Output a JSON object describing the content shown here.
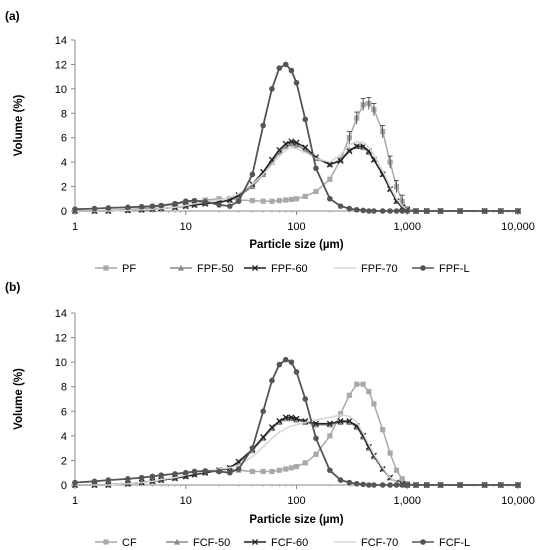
{
  "chart_data": [
    {
      "type": "line",
      "panel_label": "(a)",
      "xlabel": "Particle size (µm)",
      "ylabel": "Volume (%)",
      "x_scale": "log",
      "xlim": [
        1,
        10000
      ],
      "ylim": [
        0,
        14
      ],
      "x_tick_labels": [
        "1",
        "10",
        "100",
        "1,000",
        "10,000"
      ],
      "y_tick_labels": [
        "0",
        "2",
        "4",
        "6",
        "8",
        "10",
        "12",
        "14"
      ],
      "grid": false,
      "legend_position": "bottom",
      "x": [
        1,
        1.5,
        2,
        3,
        4,
        5,
        6,
        8,
        10,
        12,
        15,
        20,
        25,
        30,
        40,
        50,
        60,
        70,
        80,
        90,
        100,
        120,
        150,
        200,
        250,
        300,
        350,
        400,
        450,
        500,
        600,
        700,
        800,
        900,
        1000,
        1200,
        1500,
        2000,
        3000,
        5000,
        7000,
        10000
      ],
      "series": [
        {
          "name": "PF",
          "color": "#a9a9a9",
          "marker": "square",
          "values": [
            0,
            0,
            0.05,
            0.1,
            0.2,
            0.3,
            0.4,
            0.55,
            0.7,
            0.8,
            0.9,
            1.0,
            1.0,
            0.9,
            0.85,
            0.8,
            0.8,
            0.85,
            0.9,
            0.95,
            1.0,
            1.2,
            1.6,
            2.6,
            4.2,
            6.0,
            7.6,
            8.7,
            8.8,
            8.3,
            6.5,
            4.0,
            2.0,
            0.8,
            0.2,
            0,
            0,
            0,
            0,
            0,
            0,
            0
          ]
        },
        {
          "name": "FPF-50",
          "color": "#8a8a8a",
          "marker": "triangle",
          "values": [
            0,
            0,
            0,
            0.05,
            0.1,
            0.15,
            0.2,
            0.3,
            0.4,
            0.5,
            0.6,
            0.7,
            0.9,
            1.2,
            2.0,
            3.0,
            4.0,
            4.8,
            5.3,
            5.5,
            5.4,
            5.0,
            4.3,
            3.8,
            4.2,
            5.0,
            5.3,
            5.2,
            4.8,
            4.2,
            3.0,
            1.8,
            0.8,
            0.3,
            0.1,
            0,
            0,
            0,
            0,
            0,
            0,
            0
          ]
        },
        {
          "name": "FPF-60",
          "color": "#222222",
          "marker": "x",
          "values": [
            0,
            0,
            0,
            0.05,
            0.1,
            0.15,
            0.2,
            0.3,
            0.4,
            0.5,
            0.6,
            0.7,
            0.9,
            1.3,
            2.2,
            3.2,
            4.2,
            5.0,
            5.5,
            5.7,
            5.6,
            5.2,
            4.4,
            3.8,
            4.1,
            4.9,
            5.3,
            5.3,
            4.9,
            4.2,
            3.0,
            1.8,
            0.8,
            0.3,
            0.1,
            0,
            0,
            0,
            0,
            0,
            0,
            0
          ]
        },
        {
          "name": "FPF-70",
          "color": "#d5d5d5",
          "marker": "none",
          "values": [
            0,
            0,
            0,
            0.05,
            0.1,
            0.15,
            0.2,
            0.3,
            0.45,
            0.6,
            0.75,
            0.9,
            1.1,
            1.4,
            2.2,
            3.0,
            3.8,
            4.5,
            5.0,
            5.2,
            5.1,
            4.8,
            4.3,
            4.0,
            4.6,
            5.4,
            5.7,
            5.6,
            5.2,
            4.6,
            3.3,
            2.0,
            1.0,
            0.4,
            0.1,
            0,
            0,
            0,
            0,
            0,
            0,
            0
          ]
        },
        {
          "name": "FPF-L",
          "color": "#555555",
          "marker": "circle",
          "values": [
            0.15,
            0.2,
            0.25,
            0.3,
            0.35,
            0.4,
            0.45,
            0.6,
            0.8,
            0.85,
            0.75,
            0.5,
            0.4,
            0.8,
            3.0,
            7.0,
            10.0,
            11.7,
            12.0,
            11.5,
            10.5,
            7.5,
            3.5,
            1.0,
            0.4,
            0.2,
            0.1,
            0.05,
            0,
            0,
            0,
            0,
            0,
            0,
            0,
            0,
            0,
            0,
            0,
            0,
            0,
            0
          ]
        }
      ]
    },
    {
      "type": "line",
      "panel_label": "(b)",
      "xlabel": "Particle size (µm)",
      "ylabel": "Volume (%)",
      "x_scale": "log",
      "xlim": [
        1,
        10000
      ],
      "ylim": [
        0,
        14
      ],
      "x_tick_labels": [
        "1",
        "10",
        "100",
        "1,000",
        "10,000"
      ],
      "y_tick_labels": [
        "0",
        "2",
        "4",
        "6",
        "8",
        "10",
        "12",
        "14"
      ],
      "grid": false,
      "legend_position": "bottom",
      "x": [
        1,
        1.5,
        2,
        3,
        4,
        5,
        6,
        8,
        10,
        12,
        15,
        20,
        25,
        30,
        40,
        50,
        60,
        70,
        80,
        90,
        100,
        120,
        150,
        200,
        250,
        300,
        350,
        400,
        450,
        500,
        600,
        700,
        800,
        900,
        1000,
        1200,
        1500,
        2000,
        3000,
        5000,
        7000,
        10000
      ],
      "series": [
        {
          "name": "CF",
          "color": "#a9a9a9",
          "marker": "square",
          "values": [
            0,
            0,
            0.05,
            0.1,
            0.2,
            0.3,
            0.4,
            0.6,
            0.8,
            0.9,
            1.0,
            1.2,
            1.3,
            1.2,
            1.1,
            1.1,
            1.1,
            1.2,
            1.3,
            1.4,
            1.5,
            1.8,
            2.5,
            4.0,
            5.8,
            7.3,
            8.2,
            8.2,
            7.6,
            6.6,
            4.5,
            2.6,
            1.2,
            0.5,
            0.1,
            0,
            0,
            0,
            0,
            0,
            0,
            0
          ]
        },
        {
          "name": "FCF-50",
          "color": "#8a8a8a",
          "marker": "triangle",
          "values": [
            0,
            0,
            0,
            0.1,
            0.2,
            0.3,
            0.4,
            0.55,
            0.7,
            0.85,
            1.0,
            1.2,
            1.4,
            1.8,
            2.8,
            3.8,
            4.6,
            5.1,
            5.4,
            5.4,
            5.3,
            5.1,
            4.9,
            4.9,
            5.1,
            5.1,
            4.7,
            3.9,
            3.0,
            2.3,
            1.3,
            0.6,
            0.2,
            0.1,
            0,
            0,
            0,
            0,
            0,
            0,
            0,
            0
          ]
        },
        {
          "name": "FCF-60",
          "color": "#222222",
          "marker": "x",
          "values": [
            0,
            0,
            0,
            0.1,
            0.2,
            0.3,
            0.4,
            0.55,
            0.7,
            0.85,
            1.0,
            1.2,
            1.4,
            1.9,
            2.9,
            3.9,
            4.7,
            5.2,
            5.5,
            5.5,
            5.4,
            5.2,
            5.0,
            5.0,
            5.2,
            5.2,
            4.8,
            4.0,
            3.1,
            2.4,
            1.3,
            0.6,
            0.2,
            0.1,
            0,
            0,
            0,
            0,
            0,
            0,
            0,
            0
          ]
        },
        {
          "name": "FCF-70",
          "color": "#d5d5d5",
          "marker": "none",
          "values": [
            0,
            0,
            0,
            0.1,
            0.2,
            0.3,
            0.45,
            0.6,
            0.8,
            0.95,
            1.1,
            1.3,
            1.4,
            1.6,
            2.3,
            3.1,
            3.8,
            4.3,
            4.6,
            4.8,
            4.9,
            5.1,
            5.3,
            5.5,
            5.7,
            5.6,
            5.1,
            4.2,
            3.3,
            2.5,
            1.4,
            0.6,
            0.2,
            0.1,
            0,
            0,
            0,
            0,
            0,
            0,
            0,
            0
          ]
        },
        {
          "name": "FCF-L",
          "color": "#555555",
          "marker": "circle",
          "values": [
            0.2,
            0.3,
            0.4,
            0.5,
            0.6,
            0.7,
            0.8,
            0.9,
            1.0,
            1.1,
            1.15,
            1.1,
            1.0,
            1.3,
            3.0,
            6.0,
            8.5,
            9.8,
            10.2,
            10.0,
            9.2,
            7.0,
            3.8,
            1.2,
            0.4,
            0.2,
            0.1,
            0.05,
            0,
            0,
            0,
            0,
            0,
            0,
            0,
            0,
            0,
            0,
            0,
            0,
            0,
            0
          ]
        }
      ]
    }
  ]
}
